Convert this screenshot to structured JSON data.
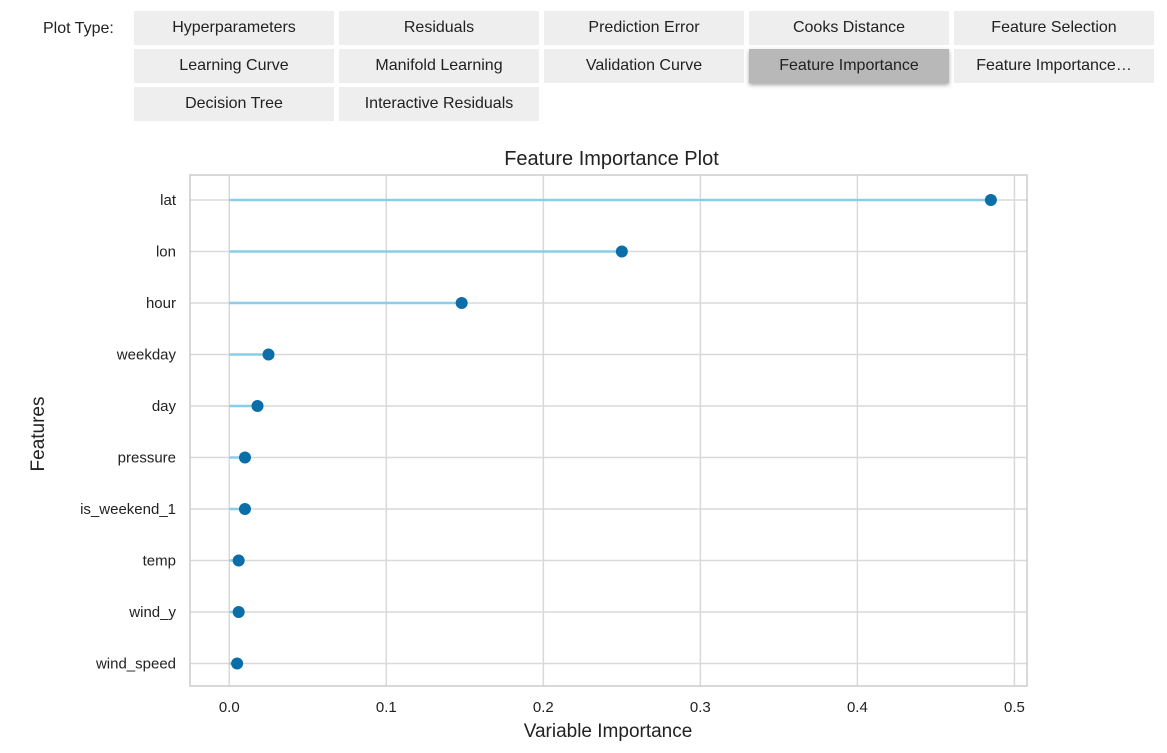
{
  "toolbar": {
    "label": "Plot Type:",
    "buttons": [
      {
        "label": "Hyperparameters",
        "active": false
      },
      {
        "label": "Residuals",
        "active": false
      },
      {
        "label": "Prediction Error",
        "active": false
      },
      {
        "label": "Cooks Distance",
        "active": false
      },
      {
        "label": "Feature Selection",
        "active": false
      },
      {
        "label": "Learning Curve",
        "active": false
      },
      {
        "label": "Manifold Learning",
        "active": false
      },
      {
        "label": "Validation Curve",
        "active": false
      },
      {
        "label": "Feature Importance",
        "active": true
      },
      {
        "label": "Feature Importance…",
        "active": false
      },
      {
        "label": "Decision Tree",
        "active": false
      },
      {
        "label": "Interactive Residuals",
        "active": false
      }
    ]
  },
  "chart_data": {
    "type": "scatter",
    "style": "lollipop",
    "title": "Feature Importance Plot",
    "xlabel": "Variable Importance",
    "ylabel": "Features",
    "categories": [
      "lat",
      "lon",
      "hour",
      "weekday",
      "day",
      "pressure",
      "is_weekend_1",
      "temp",
      "wind_y",
      "wind_speed"
    ],
    "values": [
      0.485,
      0.25,
      0.148,
      0.025,
      0.018,
      0.01,
      0.01,
      0.006,
      0.006,
      0.005
    ],
    "xlim": [
      -0.025,
      0.508
    ],
    "xticks": [
      0.0,
      0.1,
      0.2,
      0.3,
      0.4,
      0.5
    ],
    "xtick_labels": [
      "0.0",
      "0.1",
      "0.2",
      "0.3",
      "0.4",
      "0.5"
    ],
    "grid": true,
    "colors": {
      "line": "#87ceeb",
      "marker": "#0a6ea8",
      "grid": "#d9d9d9",
      "frame": "#cccccc",
      "text": "#222222"
    }
  }
}
